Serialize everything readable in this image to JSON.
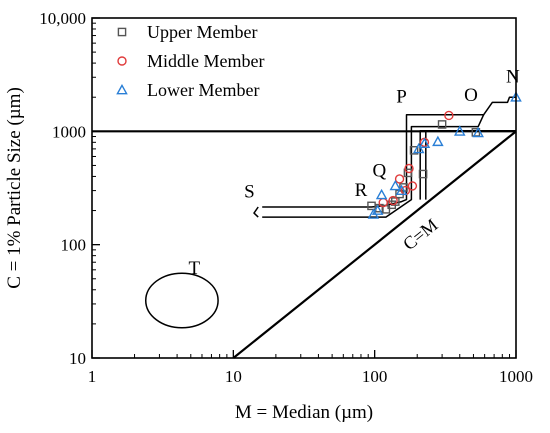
{
  "chart_data": {
    "type": "scatter",
    "title": "",
    "xlabel": "M = Median (µm)",
    "ylabel": "C = 1% Particle Size (µm)",
    "xscale": "log",
    "yscale": "log",
    "xlim": [
      1,
      1000
    ],
    "ylim": [
      10,
      10000
    ],
    "x_ticks": [
      {
        "value": 1,
        "label": "1"
      },
      {
        "value": 10,
        "label": "10"
      },
      {
        "value": 100,
        "label": "100"
      },
      {
        "value": 1000,
        "label": "1000"
      }
    ],
    "y_ticks": [
      {
        "value": 10,
        "label": "10"
      },
      {
        "value": 100,
        "label": "100"
      },
      {
        "value": 1000,
        "label": "1000"
      },
      {
        "value": 10000,
        "label": "10,000"
      }
    ],
    "legend_position": "top-left",
    "series": [
      {
        "name": "Upper Member",
        "marker": "square",
        "color": "#555555",
        "points": [
          [
            95,
            220
          ],
          [
            108,
            210
          ],
          [
            120,
            205
          ],
          [
            132,
            225
          ],
          [
            140,
            240
          ],
          [
            150,
            280
          ],
          [
            160,
            320
          ],
          [
            172,
            430
          ],
          [
            190,
            680
          ],
          [
            220,
            420
          ],
          [
            300,
            1150
          ],
          [
            520,
            980
          ]
        ]
      },
      {
        "name": "Middle Member",
        "marker": "circle",
        "color": "#e03a3a",
        "points": [
          [
            115,
            235
          ],
          [
            135,
            245
          ],
          [
            150,
            380
          ],
          [
            165,
            300
          ],
          [
            175,
            470
          ],
          [
            185,
            330
          ],
          [
            225,
            800
          ],
          [
            335,
            1380
          ]
        ]
      },
      {
        "name": "Lower Member",
        "marker": "triangle",
        "color": "#2a7fd6",
        "points": [
          [
            98,
            185
          ],
          [
            105,
            200
          ],
          [
            112,
            275
          ],
          [
            140,
            330
          ],
          [
            155,
            300
          ],
          [
            205,
            700
          ],
          [
            225,
            780
          ],
          [
            280,
            810
          ],
          [
            400,
            1000
          ],
          [
            540,
            970
          ],
          [
            1000,
            2000
          ]
        ]
      }
    ],
    "reference_lines": [
      {
        "label": "C=M",
        "from": [
          10,
          10
        ],
        "to": [
          1000,
          1000
        ]
      },
      {
        "label": "",
        "from": [
          1,
          1000
        ],
        "to": [
          1000,
          1000
        ]
      }
    ],
    "regions": [
      {
        "label": "N",
        "label_at": [
          950,
          2700
        ]
      },
      {
        "label": "O",
        "label_at": [
          480,
          1850
        ]
      },
      {
        "label": "P",
        "label_at": [
          155,
          1800
        ]
      },
      {
        "label": "Q",
        "label_at": [
          108,
          400
        ]
      },
      {
        "label": "R",
        "label_at": [
          80,
          270
        ]
      },
      {
        "label": "S",
        "label_at": [
          13,
          260
        ]
      },
      {
        "label": "T",
        "label_at": [
          5.3,
          55
        ]
      }
    ],
    "boundary_lines": [
      [
        [
          16,
          215
        ],
        [
          95,
          215
        ],
        [
          120,
          222
        ],
        [
          155,
          240
        ],
        [
          168,
          250
        ],
        [
          168,
          1400
        ],
        [
          590,
          1400
        ],
        [
          680,
          1800
        ],
        [
          870,
          1800
        ],
        [
          900,
          2000
        ],
        [
          1000,
          2000
        ]
      ],
      [
        [
          16,
          175
        ],
        [
          120,
          175
        ],
        [
          182,
          250
        ],
        [
          182,
          1100
        ],
        [
          540,
          1100
        ],
        [
          590,
          1400
        ]
      ],
      [
        [
          15,
          175
        ],
        [
          14,
          190
        ],
        [
          15,
          215
        ]
      ],
      [
        [
          210,
          250
        ],
        [
          210,
          1010
        ],
        [
          600,
          1010
        ],
        [
          1000,
          1010
        ]
      ],
      [
        [
          230,
          250
        ],
        [
          230,
          1010
        ]
      ]
    ],
    "ellipse_T": {
      "center": [
        4.2,
        32
      ],
      "x_range": [
        2.4,
        7.8
      ],
      "y_range": [
        18.5,
        56
      ]
    }
  }
}
